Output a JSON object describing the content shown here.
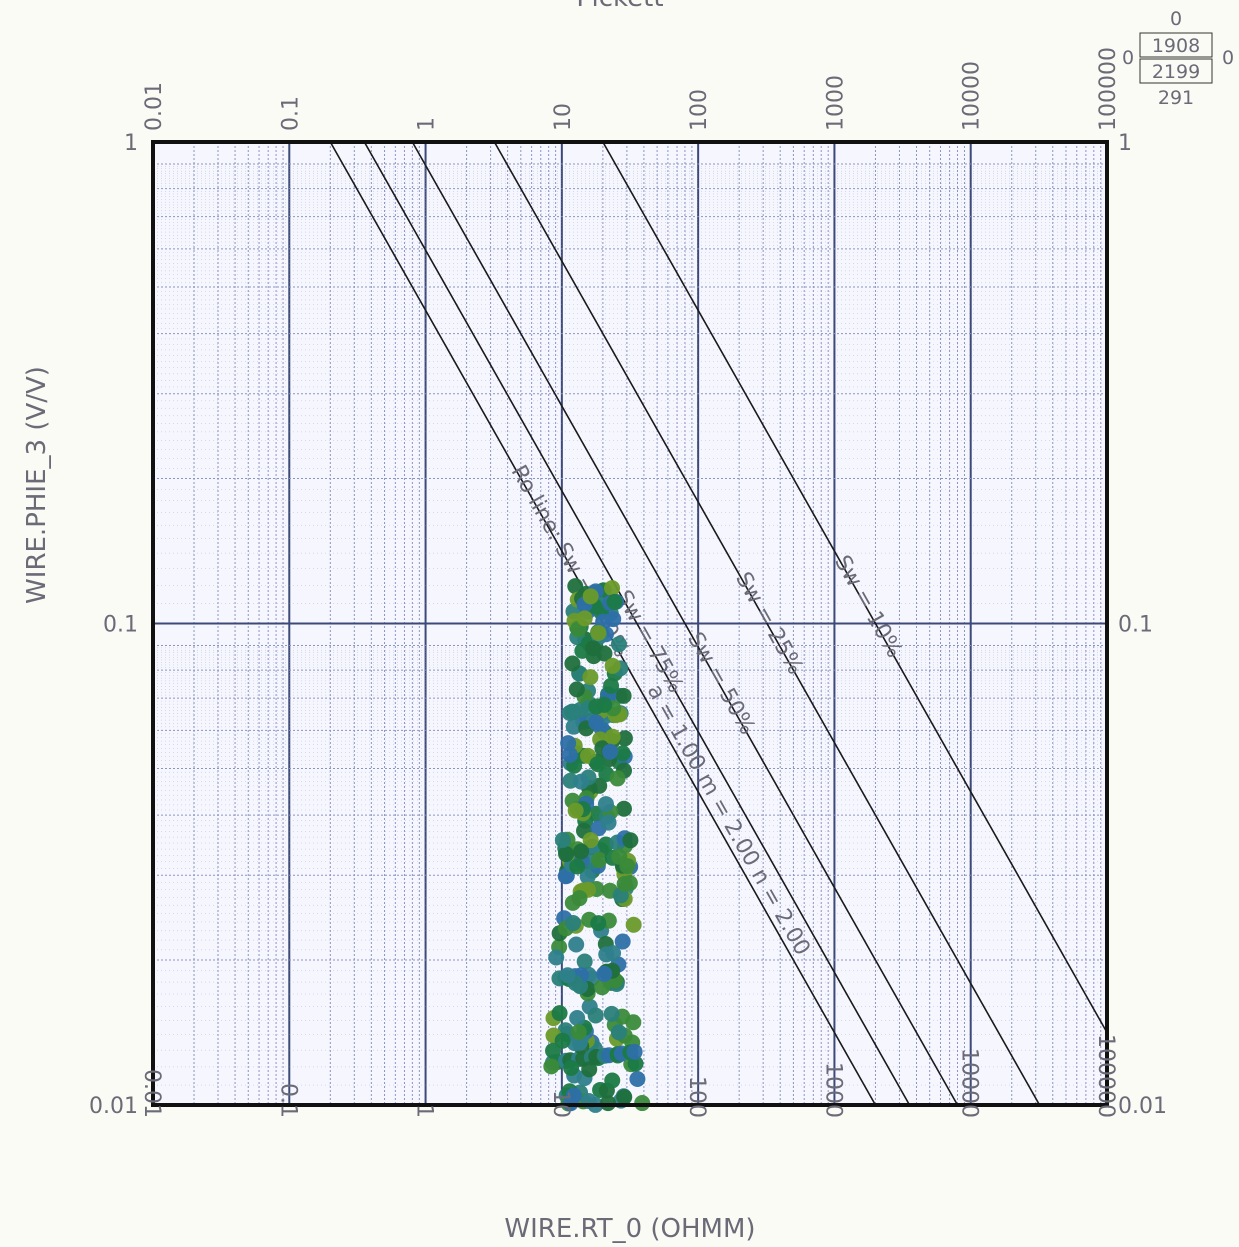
{
  "chart_data": {
    "type": "scatter",
    "title": "Pickett",
    "xlabel": "WIRE.RT_0 (OHMM)",
    "ylabel": "WIRE.PHIE_3 (V/V)",
    "x_scale": "log",
    "y_scale": "log",
    "xlim": [
      0.01,
      100000
    ],
    "ylim": [
      0.01,
      1
    ],
    "x_ticks": [
      "0.01",
      "0.1",
      "1",
      "10",
      "100",
      "1000",
      "10000",
      "100000"
    ],
    "x_tick_values": [
      0.01,
      0.1,
      1,
      10,
      100,
      1000,
      10000,
      100000
    ],
    "y_ticks": [
      "0.01",
      "0.1",
      "1"
    ],
    "y_tick_values": [
      0.01,
      0.1,
      1
    ],
    "grid": true,
    "sw_lines": [
      {
        "label": "Ro line: Sw = 100%",
        "sw": 1.0
      },
      {
        "label": "Sw = 75%",
        "sw": 0.75
      },
      {
        "label": "Sw = 50%",
        "sw": 0.5
      },
      {
        "label": "Sw = 25%",
        "sw": 0.25
      },
      {
        "label": "Sw = 10%",
        "sw": 0.1
      }
    ],
    "extra_line_label": "a = 1.00  m = 2.00  n = 2.00",
    "point_colors": [
      "#1f6f3c",
      "#1b7a46",
      "#2a7f7a",
      "#2e7f8c",
      "#3a8a3a",
      "#6a9a2a",
      "#2d6fa8"
    ],
    "point_summary": {
      "x_range": [
        7,
        55
      ],
      "y_range": [
        0.01,
        0.12
      ],
      "count": 291
    },
    "stats_box": {
      "top": "0",
      "upper": "1908",
      "lower": "2199",
      "bottom": "291",
      "left": "0",
      "right": "0"
    }
  },
  "colors": {
    "frame": "#111111",
    "grid_major": "#3b4a78",
    "grid_minor": "#8a94be",
    "plot_bg": "#f6f6ff",
    "sw_line": "#1a1a1a"
  }
}
